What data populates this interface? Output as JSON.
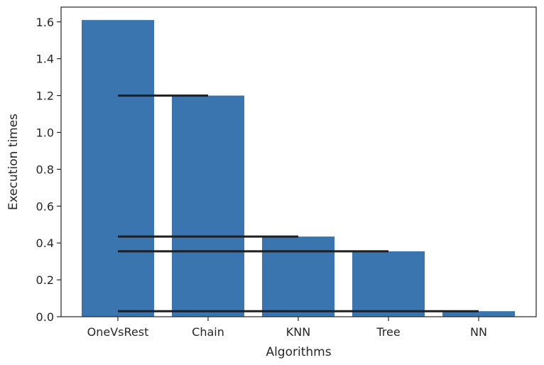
{
  "chart_data": {
    "type": "bar",
    "title": "",
    "xlabel": "Algorithms",
    "ylabel": "Execution times",
    "categories": [
      "OneVsRest",
      "Chain",
      "KNN",
      "Tree",
      "NN"
    ],
    "values": [
      1.61,
      1.2,
      0.435,
      0.355,
      0.03
    ],
    "ylim": [
      0,
      1.68
    ],
    "yticks": [
      0.0,
      0.2,
      0.4,
      0.6,
      0.8,
      1.0,
      1.2,
      1.4,
      1.6
    ],
    "ytick_labels": [
      "0.0",
      "0.2",
      "0.4",
      "0.6",
      "0.8",
      "1.0",
      "1.2",
      "1.4",
      "1.6"
    ],
    "grid": false,
    "bar_color": "#3a75af",
    "reference_line_color": "#1f1f1f",
    "reference_lines": [
      {
        "y": 1.2,
        "from_category": 0,
        "to_category": 1
      },
      {
        "y": 0.435,
        "from_category": 0,
        "to_category": 2
      },
      {
        "y": 0.355,
        "from_category": 0,
        "to_category": 3
      },
      {
        "y": 0.03,
        "from_category": 0,
        "to_category": 4
      }
    ]
  }
}
